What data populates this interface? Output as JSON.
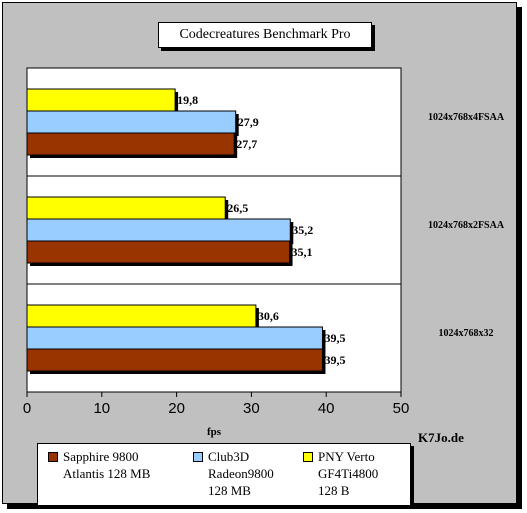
{
  "chart_data": {
    "type": "bar",
    "orientation": "horizontal",
    "title": "Codecreatures Benchmark Pro",
    "xlabel": "fps",
    "ylabel": "",
    "xlim": [
      0,
      50
    ],
    "xticks": [
      "0",
      "10",
      "20",
      "30",
      "40",
      "50"
    ],
    "categories": [
      "1024x768x4FSAA",
      "1024x768x2FSAA",
      "1024x768x32"
    ],
    "series": [
      {
        "name": "PNY Verto GF4Ti4800 128 B",
        "color": "#ffff00",
        "values": [
          19.8,
          26.5,
          30.6
        ],
        "labels": [
          "19,8",
          "26,5",
          "30,6"
        ]
      },
      {
        "name": "Club3D Radeon9800 128 MB",
        "color": "#99ccff",
        "values": [
          27.9,
          35.2,
          39.5
        ],
        "labels": [
          "27,9",
          "35,2",
          "39,5"
        ]
      },
      {
        "name": "Sapphire 9800 Atlantis 128 MB",
        "color": "#993300",
        "values": [
          27.7,
          35.1,
          39.5
        ],
        "labels": [
          "27,7",
          "35,1",
          "39,5"
        ]
      }
    ],
    "grid": false,
    "legend_position": "bottom"
  },
  "watermark": "K7Jo.de",
  "legend": [
    {
      "lines": [
        "Sapphire 9800",
        "Atlantis 128 MB"
      ],
      "color": "#993300"
    },
    {
      "lines": [
        "Club3D",
        "Radeon9800",
        "128 MB"
      ],
      "color": "#99ccff"
    },
    {
      "lines": [
        "PNY Verto",
        "GF4Ti4800",
        "128 B"
      ],
      "color": "#ffff00"
    }
  ]
}
